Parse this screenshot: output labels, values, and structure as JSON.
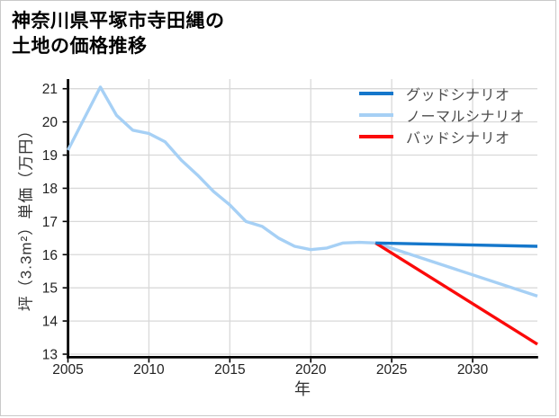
{
  "title": {
    "line1": "神奈川県平塚市寺田縄の",
    "line2": "土地の価格推移"
  },
  "chart_data": {
    "type": "line",
    "title": "神奈川県平塚市寺田縄の土地の価格推移",
    "xlabel": "年",
    "ylabel": "坪（3.3m²）単価（万円）",
    "xlim": [
      2005,
      2034
    ],
    "ylim": [
      13,
      21.29
    ],
    "x_ticks": [
      2005,
      2010,
      2015,
      2020,
      2025,
      2030
    ],
    "y_ticks": [
      13,
      14,
      15,
      16,
      17,
      18,
      19,
      20,
      21
    ],
    "grid": true,
    "legend_position": "upper right",
    "legend_frame": false,
    "series": [
      {
        "label": "グッドシナリオ",
        "color": "#1577cb",
        "x": [
          2024,
          2034
        ],
        "y": [
          16.35,
          16.25
        ]
      },
      {
        "label": "ノーマルシナリオ",
        "color": "#a6d0f5",
        "x": [
          2005,
          2006,
          2007,
          2008,
          2009,
          2010,
          2011,
          2012,
          2013,
          2014,
          2015,
          2016,
          2017,
          2018,
          2019,
          2020,
          2021,
          2022,
          2023,
          2024,
          2034
        ],
        "y": [
          19.15,
          20.1,
          21.05,
          20.2,
          19.75,
          19.65,
          19.4,
          18.85,
          18.4,
          17.9,
          17.5,
          17.0,
          16.85,
          16.5,
          16.25,
          16.15,
          16.2,
          16.35,
          16.37,
          16.35,
          14.75
        ]
      },
      {
        "label": "バッドシナリオ",
        "color": "#fb0a0a",
        "x": [
          2024,
          2034
        ],
        "y": [
          16.35,
          13.3
        ]
      }
    ],
    "colors": {
      "gridline": "#d9d9d9",
      "spine": "#000000",
      "tick_label": "#222222",
      "axis_title": "#333333",
      "legend_text": "#4d4d4d",
      "card_border": "#c9c9c9"
    }
  }
}
